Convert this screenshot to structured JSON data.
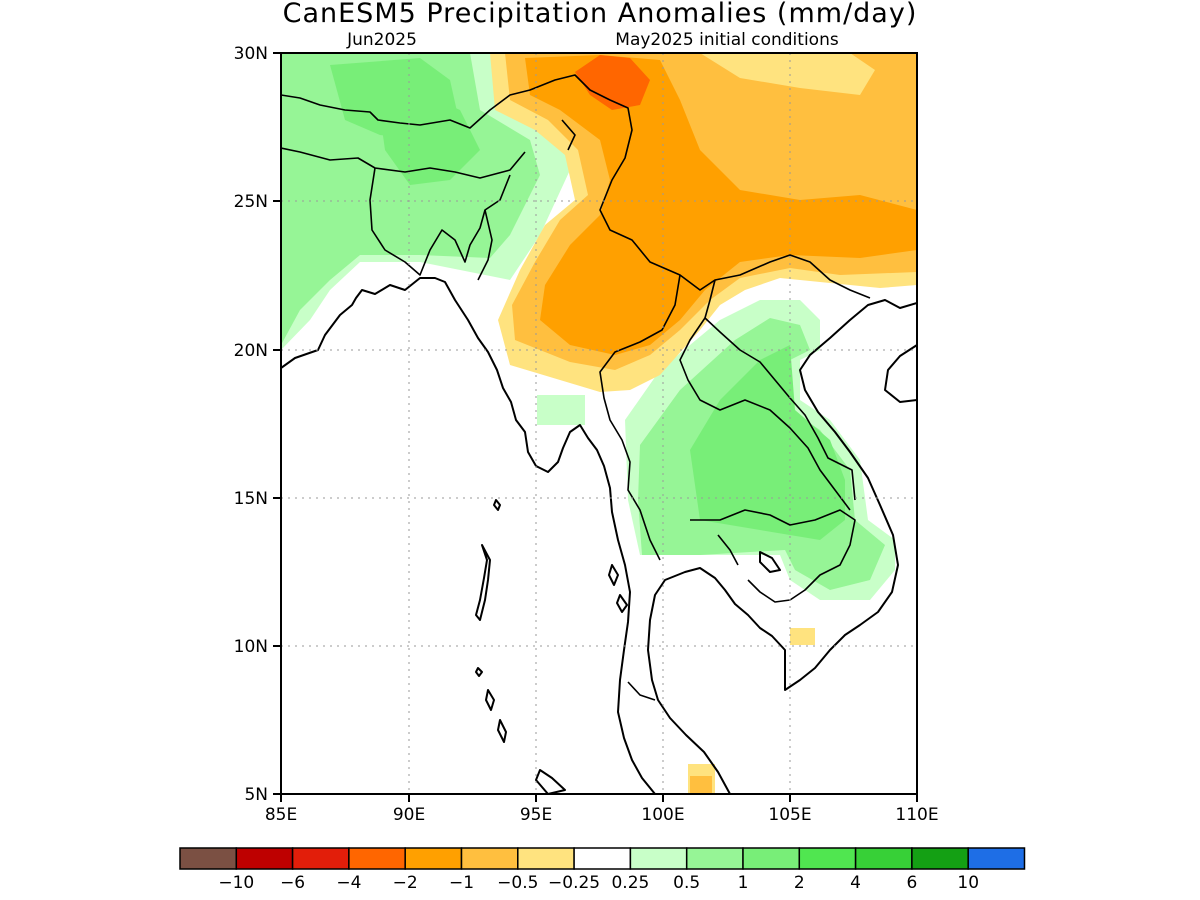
{
  "title": "CanESM5 Precipitation Anomalies (mm/day)",
  "subtitle_left": "Jun2025",
  "subtitle_right": "May2025 initial conditions",
  "x_ticks": [
    "85E",
    "90E",
    "95E",
    "100E",
    "105E",
    "110E"
  ],
  "y_ticks": [
    "30N",
    "25N",
    "20N",
    "15N",
    "10N",
    "5N"
  ],
  "colorbar": {
    "colors": [
      "#7b5043",
      "#be0000",
      "#e21e0a",
      "#ff6600",
      "#ffa000",
      "#ffbf3f",
      "#ffe37f",
      "#ffffff",
      "#c8ffc8",
      "#96f596",
      "#78ee78",
      "#50e650",
      "#37d037",
      "#14a014",
      "#1e6ee6"
    ],
    "labels": [
      "−10",
      "−6",
      "−4",
      "−2",
      "−1",
      "−0.5",
      "−0.25",
      "0.25",
      "0.5",
      "1",
      "2",
      "4",
      "6",
      "10"
    ]
  }
}
